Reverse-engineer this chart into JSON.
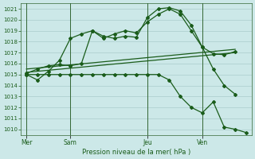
{
  "title": "Pression niveau de la mer( hPa )",
  "bg_color": "#cce8e8",
  "grid_color": "#aacccc",
  "line_color": "#1a5c1a",
  "ylim": [
    1009.5,
    1021.5
  ],
  "yticks": [
    1010,
    1011,
    1012,
    1013,
    1014,
    1015,
    1016,
    1017,
    1018,
    1019,
    1020,
    1021
  ],
  "day_labels": [
    "Mer",
    "Sam",
    "Jeu",
    "Ven"
  ],
  "day_positions": [
    0,
    4,
    11,
    16
  ],
  "xlim": [
    -0.5,
    20.5
  ],
  "line1_x": [
    0,
    1,
    2,
    3,
    4,
    5,
    6,
    7,
    8,
    9,
    10,
    11,
    12,
    13,
    14,
    15,
    16,
    17,
    18,
    19
  ],
  "line1_y": [
    1015.0,
    1014.5,
    1015.3,
    1016.3,
    1018.3,
    1018.7,
    1019.0,
    1018.5,
    1018.3,
    1018.5,
    1018.4,
    1020.2,
    1021.0,
    1021.1,
    1020.8,
    1019.5,
    1017.5,
    1016.9,
    1016.8,
    1017.1
  ],
  "line2_x": [
    0,
    1,
    2,
    3,
    4,
    5,
    6,
    7,
    8,
    9,
    10,
    11,
    12,
    13,
    14,
    15,
    16,
    17,
    18,
    19
  ],
  "line2_y": [
    1015.1,
    1015.5,
    1015.8,
    1015.9,
    1015.8,
    1016.0,
    1019.0,
    1018.3,
    1018.7,
    1019.0,
    1018.8,
    1019.8,
    1020.5,
    1021.0,
    1020.5,
    1019.0,
    1017.5,
    1015.5,
    1014.0,
    1013.2
  ],
  "line3_x": [
    0,
    19
  ],
  "line3_y": [
    1015.5,
    1017.3
  ],
  "line4_x": [
    0,
    19
  ],
  "line4_y": [
    1015.2,
    1017.0
  ],
  "line5_x": [
    0,
    1,
    2,
    3,
    4,
    5,
    6,
    7,
    8,
    9,
    10,
    11,
    12,
    13,
    14,
    15,
    16,
    17,
    18,
    19,
    20
  ],
  "line5_y": [
    1015.0,
    1015.0,
    1015.0,
    1015.0,
    1015.0,
    1015.0,
    1015.0,
    1015.0,
    1015.0,
    1015.0,
    1015.0,
    1015.0,
    1015.0,
    1014.5,
    1013.0,
    1012.0,
    1011.5,
    1012.5,
    1010.2,
    1010.0,
    1009.7
  ]
}
